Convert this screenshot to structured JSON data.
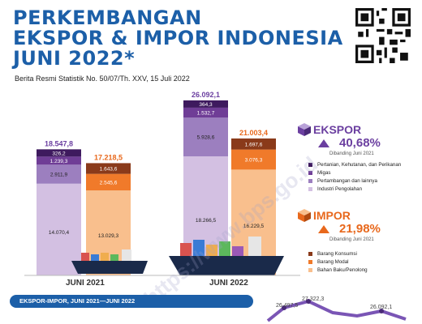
{
  "header": {
    "title_lines": [
      "PERKEMBANGAN",
      "EKSPOR & IMPOR INDONESIA",
      "JUNI 2022*"
    ],
    "subtitle": "Berita Resmi Statistik No. 50/07/Th. XXV, 15 Juli 2022"
  },
  "colors": {
    "title": "#1c5fa8",
    "ekspor_industri": "#d3c0e2",
    "ekspor_tambang": "#9c7fbf",
    "ekspor_migas": "#6f3d96",
    "ekspor_pertanian": "#3e1a5e",
    "impor_bahan_baku": "#f9bf8d",
    "impor_modal": "#f07a2a",
    "impor_konsumsi": "#8a3a1a",
    "ekspor_accent": "#6b3fa0",
    "impor_accent": "#e8681c"
  },
  "chart_data": {
    "type": "bar",
    "stacked": true,
    "categories": [
      "JUNI 2021",
      "JUNI 2022"
    ],
    "series": [
      {
        "group": "ekspor",
        "name": "Industri Pengolahan",
        "values": [
          14070.4,
          18266.5
        ]
      },
      {
        "group": "ekspor",
        "name": "Pertambangan dan lainnya",
        "values": [
          2911.9,
          5928.6
        ]
      },
      {
        "group": "ekspor",
        "name": "Migas",
        "values": [
          1239.3,
          1532.7
        ]
      },
      {
        "group": "ekspor",
        "name": "Pertanian, Kehutanan, dan Perikanan",
        "values": [
          326.2,
          364.3
        ]
      },
      {
        "group": "impor",
        "name": "Bahan Baku/Penolong",
        "values": [
          13029.3,
          16229.5
        ]
      },
      {
        "group": "impor",
        "name": "Barang Modal",
        "values": [
          2545.6,
          3076.3
        ]
      },
      {
        "group": "impor",
        "name": "Barang Konsumsi",
        "values": [
          1643.6,
          1697.6
        ]
      }
    ],
    "totals": {
      "ekspor": [
        18547.8,
        26092.1
      ],
      "impor": [
        17218.5,
        21003.4
      ]
    },
    "value_labels": {
      "ekspor": [
        [
          "14.070,4",
          "2.911,9",
          "1.239,3",
          "326,2"
        ],
        [
          "18.266,5",
          "5.928,6",
          "1.532,7",
          "364,3"
        ]
      ],
      "impor": [
        [
          "13.029,3",
          "2.545,6",
          "1.643,6"
        ],
        [
          "16.229,5",
          "3.076,3",
          "1.697,6"
        ]
      ],
      "ekspor_totals": [
        "18.547,8",
        "26.092,1"
      ],
      "impor_totals": [
        "17.218,5",
        "21.003,4"
      ]
    },
    "legend_placement": "right"
  },
  "kpi": {
    "ekspor": {
      "label": "EKSPOR",
      "value": "40,68%",
      "note": "Dibanding Juni 2021"
    },
    "impor": {
      "label": "IMPOR",
      "value": "21,98%",
      "note": "Dibanding Juni 2021"
    }
  },
  "legend": {
    "ekspor": [
      "Pertanian, Kehutanan, dan Perikanan",
      "Migas",
      "Pertambangan dan lainnya",
      "Industri Pengolahan"
    ],
    "impor": [
      "Barang Konsumsi",
      "Barang Modal",
      "Bahan Baku/Penolong"
    ]
  },
  "footer": {
    "section_title": "EKSPOR-IMPOR, JUNI 2021—JUNI 2022",
    "line_labels": [
      "26.497,5",
      "27.322,3",
      "26.092,1"
    ],
    "watermark": "https://www.bps.go.id"
  }
}
